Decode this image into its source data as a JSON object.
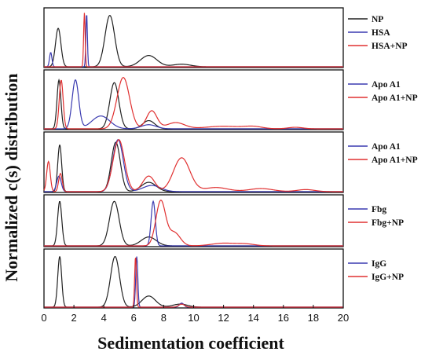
{
  "chart_data": {
    "type": "line",
    "xlabel": "Sedimentation coefficient",
    "ylabel": "Normalized c(s) distribution",
    "xlim": [
      0,
      20
    ],
    "xticks": [
      "0",
      "2",
      "4",
      "6",
      "8",
      "10",
      "12",
      "14",
      "16",
      "18",
      "20"
    ],
    "panels": [
      {
        "legend": [
          "NP",
          "HSA",
          "HSA+NP"
        ],
        "series": [
          {
            "name": "NP",
            "color": "#222222",
            "peaks": [
              [
                0.95,
                0.75,
                0.18
              ],
              [
                4.4,
                1.0,
                0.32
              ],
              [
                7.0,
                0.22,
                0.55
              ],
              [
                9.2,
                0.05,
                0.6
              ]
            ]
          },
          {
            "name": "HSA",
            "color": "#3a3ab0",
            "peaks": [
              [
                0.45,
                0.28,
                0.08
              ],
              [
                2.85,
                1.05,
                0.05
              ]
            ]
          },
          {
            "name": "HSA+NP",
            "color": "#e03030",
            "peaks": [
              [
                2.7,
                1.05,
                0.05
              ]
            ]
          }
        ]
      },
      {
        "legend": [
          "Apo A1",
          "Apo A1+NP"
        ],
        "series": [
          {
            "name": "NP",
            "color": "#222222",
            "peaks": [
              [
                1.0,
                0.95,
                0.13
              ],
              [
                4.7,
                0.9,
                0.3
              ],
              [
                7.0,
                0.16,
                0.4
              ]
            ]
          },
          {
            "name": "Apo A1",
            "color": "#3a3ab0",
            "peaks": [
              [
                2.1,
                0.95,
                0.22
              ],
              [
                3.8,
                0.25,
                0.6
              ],
              [
                7.0,
                0.08,
                0.5
              ]
            ]
          },
          {
            "name": "Apo A1+NP",
            "color": "#e03030",
            "peaks": [
              [
                1.15,
                0.95,
                0.13
              ],
              [
                5.3,
                1.0,
                0.42
              ],
              [
                7.2,
                0.35,
                0.35
              ],
              [
                8.8,
                0.12,
                0.6
              ],
              [
                12.0,
                0.05,
                1.2
              ],
              [
                14.0,
                0.04,
                0.6
              ],
              [
                16.8,
                0.03,
                0.5
              ]
            ]
          }
        ]
      },
      {
        "legend": [
          "Apo A1",
          "Apo A1+NP"
        ],
        "series": [
          {
            "name": "NP",
            "color": "#222222",
            "peaks": [
              [
                1.05,
                0.9,
                0.13
              ],
              [
                4.8,
                0.95,
                0.3
              ],
              [
                7.0,
                0.18,
                0.5
              ]
            ]
          },
          {
            "name": "Apo A1",
            "color": "#3a3ab0",
            "peaks": [
              [
                1.0,
                0.3,
                0.15
              ],
              [
                4.95,
                1.0,
                0.35
              ],
              [
                7.2,
                0.12,
                0.6
              ]
            ]
          },
          {
            "name": "Apo A1+NP",
            "color": "#e03030",
            "peaks": [
              [
                0.3,
                0.58,
                0.12
              ],
              [
                1.1,
                0.35,
                0.12
              ],
              [
                5.0,
                1.0,
                0.38
              ],
              [
                7.0,
                0.3,
                0.4
              ],
              [
                9.2,
                0.65,
                0.55
              ],
              [
                11.5,
                0.08,
                0.8
              ],
              [
                14.5,
                0.06,
                0.8
              ],
              [
                17.5,
                0.04,
                0.6
              ]
            ]
          }
        ]
      },
      {
        "legend": [
          "Fbg",
          "Fbg+NP"
        ],
        "series": [
          {
            "name": "NP",
            "color": "#222222",
            "peaks": [
              [
                1.05,
                1.0,
                0.14
              ],
              [
                4.7,
                1.0,
                0.32
              ],
              [
                7.0,
                0.2,
                0.5
              ]
            ]
          },
          {
            "name": "Fbg",
            "color": "#3a3ab0",
            "peaks": [
              [
                7.3,
                1.0,
                0.14
              ]
            ]
          },
          {
            "name": "Fbg+NP",
            "color": "#e03030",
            "peaks": [
              [
                7.8,
                1.0,
                0.32
              ],
              [
                8.7,
                0.3,
                0.4
              ],
              [
                12.0,
                0.06,
                0.8
              ],
              [
                13.5,
                0.04,
                0.6
              ]
            ]
          }
        ]
      },
      {
        "legend": [
          "IgG",
          "IgG+NP"
        ],
        "series": [
          {
            "name": "NP",
            "color": "#222222",
            "peaks": [
              [
                1.05,
                1.0,
                0.13
              ],
              [
                4.75,
                1.0,
                0.3
              ],
              [
                7.0,
                0.22,
                0.45
              ],
              [
                9.1,
                0.06,
                0.5
              ]
            ]
          },
          {
            "name": "IgG",
            "color": "#3a3ab0",
            "peaks": [
              [
                6.2,
                1.0,
                0.07
              ],
              [
                9.2,
                0.08,
                0.15
              ]
            ]
          },
          {
            "name": "IgG+NP",
            "color": "#e03030",
            "peaks": [
              [
                6.12,
                1.0,
                0.06
              ],
              [
                9.2,
                0.06,
                0.2
              ]
            ]
          }
        ]
      }
    ]
  }
}
